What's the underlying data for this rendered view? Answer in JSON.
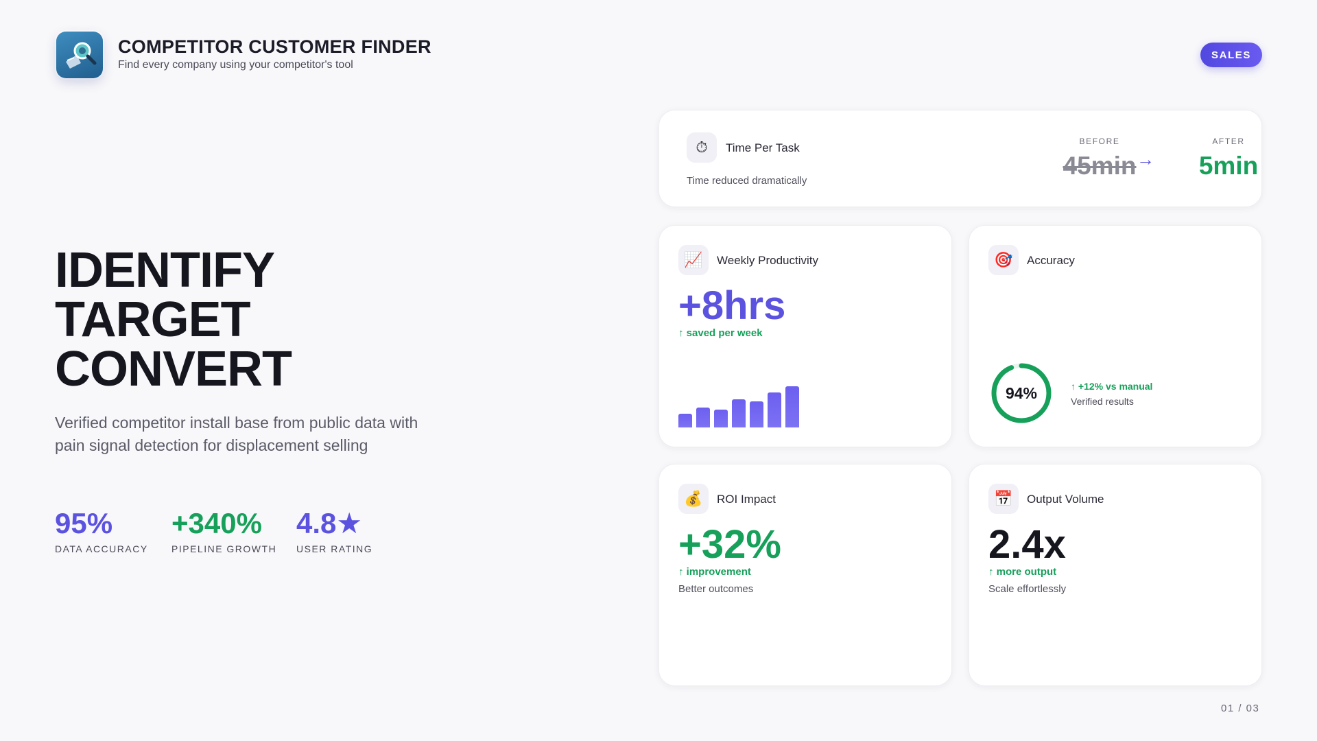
{
  "app": {
    "title": "COMPETITOR CUSTOMER FINDER",
    "subtitle": "Find every company using your competitor's tool",
    "badge": "SALES",
    "logo_icon": "magnifier-icon"
  },
  "hero": {
    "lines": [
      "IDENTIFY",
      "TARGET",
      "CONVERT"
    ],
    "description": "Verified competitor install base from public data with pain signal detection for displacement selling",
    "stats": [
      {
        "value": "95%",
        "label": "DATA ACCURACY",
        "color": "#5b52e0"
      },
      {
        "value": "+340%",
        "label": "PIPELINE GROWTH",
        "color": "#16a05a"
      },
      {
        "value": "4.8★",
        "label": "USER RATING",
        "color": "#5b52e0"
      }
    ]
  },
  "time_card": {
    "icon": "⏱",
    "title": "Time Per Task",
    "subtitle": "Time reduced dramatically",
    "before_label": "BEFORE",
    "before_value": "45min",
    "arrow": "→",
    "after_label": "AFTER",
    "after_value": "5min"
  },
  "productivity_card": {
    "icon": "📈",
    "title": "Weekly Productivity",
    "value": "+8hrs",
    "note": "↑ saved per week",
    "bars": [
      20,
      29,
      26,
      41,
      38,
      51,
      60
    ]
  },
  "accuracy_card": {
    "icon": "🎯",
    "title": "Accuracy",
    "value": "94%",
    "percent": 94,
    "note": "↑ +12% vs manual",
    "sub": "Verified results"
  },
  "roi_card": {
    "icon": "💰",
    "title": "ROI Impact",
    "value": "+32%",
    "note": "↑ improvement",
    "sub": "Better outcomes"
  },
  "output_card": {
    "icon": "📅",
    "title": "Output Volume",
    "value": "2.4x",
    "note": "↑ more output",
    "sub": "Scale effortlessly"
  },
  "pagination": "01 / 03",
  "colors": {
    "accent": "#5b52e0",
    "green": "#16a05a",
    "dark": "#16161f"
  }
}
